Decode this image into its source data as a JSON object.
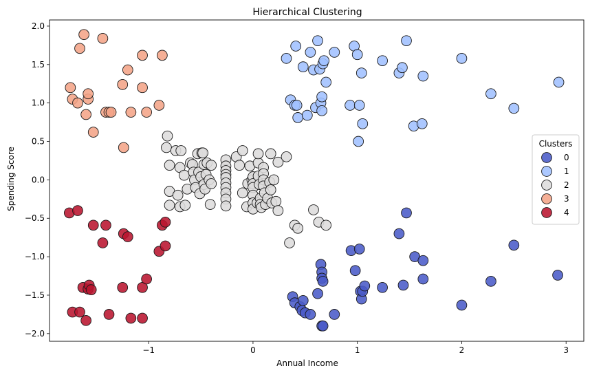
{
  "chart_data": {
    "type": "scatter",
    "title": "Hierarchical Clustering",
    "xlabel": "Annual Income",
    "ylabel": "Spending Score",
    "xlim": [
      -1.95,
      3.17
    ],
    "ylim": [
      -2.1,
      2.08
    ],
    "xticks": [
      -1,
      0,
      1,
      2,
      3
    ],
    "xtick_labels": [
      "−1",
      "0",
      "1",
      "2",
      "3"
    ],
    "yticks": [
      -2.0,
      -1.5,
      -1.0,
      -0.5,
      0.0,
      0.5,
      1.0,
      1.5,
      2.0
    ],
    "ytick_labels": [
      "−2.0",
      "−1.5",
      "−1.0",
      "−0.5",
      "0.0",
      "0.5",
      "1.0",
      "1.5",
      "2.0"
    ],
    "grid": false,
    "legend": {
      "title": "Clusters",
      "placement": "right"
    },
    "series": [
      {
        "name": "0",
        "color": "#4a5bc8",
        "points": [
          [
            0.38,
            -1.52
          ],
          [
            0.4,
            -1.6
          ],
          [
            0.45,
            -1.65
          ],
          [
            0.48,
            -1.57
          ],
          [
            0.47,
            -1.7
          ],
          [
            0.5,
            -1.73
          ],
          [
            0.55,
            -1.75
          ],
          [
            0.62,
            -1.48
          ],
          [
            0.65,
            -1.1
          ],
          [
            0.66,
            -1.2
          ],
          [
            0.66,
            -1.28
          ],
          [
            0.67,
            -1.32
          ],
          [
            0.66,
            -1.9
          ],
          [
            0.67,
            -1.9
          ],
          [
            0.78,
            -1.75
          ],
          [
            0.94,
            -0.92
          ],
          [
            0.98,
            -1.18
          ],
          [
            1.02,
            -0.9
          ],
          [
            1.03,
            -1.45
          ],
          [
            1.04,
            -1.55
          ],
          [
            1.05,
            -1.45
          ],
          [
            1.07,
            -1.38
          ],
          [
            1.24,
            -1.4
          ],
          [
            1.4,
            -0.7
          ],
          [
            1.44,
            -1.37
          ],
          [
            1.47,
            -0.43
          ],
          [
            1.55,
            -1.0
          ],
          [
            1.63,
            -1.05
          ],
          [
            1.63,
            -1.29
          ],
          [
            2.0,
            -1.63
          ],
          [
            2.28,
            -1.32
          ],
          [
            2.5,
            -0.85
          ],
          [
            2.92,
            -1.24
          ]
        ]
      },
      {
        "name": "1",
        "color": "#a1c0ff",
        "points": [
          [
            0.32,
            1.58
          ],
          [
            0.36,
            1.04
          ],
          [
            0.4,
            0.97
          ],
          [
            0.41,
            1.74
          ],
          [
            0.42,
            0.97
          ],
          [
            0.43,
            0.81
          ],
          [
            0.48,
            1.47
          ],
          [
            0.52,
            0.84
          ],
          [
            0.55,
            1.66
          ],
          [
            0.58,
            1.43
          ],
          [
            0.6,
            0.94
          ],
          [
            0.62,
            1.81
          ],
          [
            0.64,
            1.44
          ],
          [
            0.65,
            1.0
          ],
          [
            0.66,
            1.08
          ],
          [
            0.66,
            0.9
          ],
          [
            0.67,
            1.51
          ],
          [
            0.68,
            1.55
          ],
          [
            0.7,
            1.27
          ],
          [
            0.78,
            1.66
          ],
          [
            0.93,
            0.97
          ],
          [
            0.97,
            1.74
          ],
          [
            1.0,
            1.63
          ],
          [
            1.01,
            0.5
          ],
          [
            1.02,
            0.97
          ],
          [
            1.04,
            1.39
          ],
          [
            1.05,
            0.73
          ],
          [
            1.24,
            1.55
          ],
          [
            1.4,
            1.39
          ],
          [
            1.43,
            1.46
          ],
          [
            1.47,
            1.81
          ],
          [
            1.54,
            0.7
          ],
          [
            1.62,
            0.73
          ],
          [
            1.63,
            1.35
          ],
          [
            2.0,
            1.58
          ],
          [
            2.28,
            1.12
          ],
          [
            2.5,
            0.93
          ],
          [
            2.93,
            1.27
          ]
        ]
      },
      {
        "name": "2",
        "color": "#dddcdc",
        "points": [
          [
            -0.83,
            0.42
          ],
          [
            -0.82,
            0.57
          ],
          [
            -0.8,
            0.19
          ],
          [
            -0.8,
            -0.15
          ],
          [
            -0.8,
            -0.33
          ],
          [
            -0.74,
            0.38
          ],
          [
            -0.72,
            -0.2
          ],
          [
            -0.7,
            0.16
          ],
          [
            -0.7,
            -0.35
          ],
          [
            -0.69,
            0.38
          ],
          [
            -0.66,
            0.06
          ],
          [
            -0.65,
            -0.33
          ],
          [
            -0.63,
            -0.12
          ],
          [
            -0.6,
            0.22
          ],
          [
            -0.58,
            0.2
          ],
          [
            -0.57,
            0.1
          ],
          [
            -0.56,
            0.0
          ],
          [
            -0.55,
            -0.1
          ],
          [
            -0.53,
            0.34
          ],
          [
            -0.52,
            0.1
          ],
          [
            -0.51,
            -0.18
          ],
          [
            -0.5,
            0.04
          ],
          [
            -0.49,
            0.35
          ],
          [
            -0.48,
            0.35
          ],
          [
            -0.47,
            0.2
          ],
          [
            -0.47,
            -0.06
          ],
          [
            -0.46,
            -0.12
          ],
          [
            -0.45,
            0.07
          ],
          [
            -0.44,
            0.22
          ],
          [
            -0.42,
            0.0
          ],
          [
            -0.41,
            -0.32
          ],
          [
            -0.4,
            0.19
          ],
          [
            -0.4,
            -0.05
          ],
          [
            -0.26,
            0.26
          ],
          [
            -0.26,
            0.18
          ],
          [
            -0.26,
            0.12
          ],
          [
            -0.26,
            0.07
          ],
          [
            -0.26,
            0.03
          ],
          [
            -0.26,
            -0.04
          ],
          [
            -0.26,
            -0.1
          ],
          [
            -0.26,
            -0.17
          ],
          [
            -0.26,
            -0.25
          ],
          [
            -0.26,
            -0.34
          ],
          [
            -0.16,
            0.3
          ],
          [
            -0.13,
            0.19
          ],
          [
            -0.1,
            0.38
          ],
          [
            -0.1,
            -0.17
          ],
          [
            -0.05,
            -0.05
          ],
          [
            -0.06,
            -0.35
          ],
          [
            -0.03,
            0.18
          ],
          [
            -0.01,
            0.0
          ],
          [
            0.0,
            0.04
          ],
          [
            0.0,
            -0.05
          ],
          [
            0.0,
            -0.1
          ],
          [
            0.0,
            -0.2
          ],
          [
            0.0,
            -0.3
          ],
          [
            0.0,
            -0.38
          ],
          [
            0.04,
            -0.3
          ],
          [
            0.05,
            0.22
          ],
          [
            0.05,
            0.34
          ],
          [
            0.05,
            0.05
          ],
          [
            0.06,
            -0.06
          ],
          [
            0.07,
            -0.24
          ],
          [
            0.07,
            -0.32
          ],
          [
            0.08,
            -0.36
          ],
          [
            0.1,
            0.16
          ],
          [
            0.1,
            0.08
          ],
          [
            0.1,
            0.0
          ],
          [
            0.1,
            -0.08
          ],
          [
            0.11,
            -0.17
          ],
          [
            0.12,
            -0.32
          ],
          [
            0.14,
            -0.24
          ],
          [
            0.16,
            -0.03
          ],
          [
            0.17,
            0.34
          ],
          [
            0.17,
            -0.13
          ],
          [
            0.18,
            -0.3
          ],
          [
            0.2,
            0.0
          ],
          [
            0.22,
            -0.28
          ],
          [
            0.24,
            0.23
          ],
          [
            0.24,
            -0.4
          ],
          [
            0.32,
            0.3
          ],
          [
            0.35,
            -0.82
          ],
          [
            0.4,
            -0.59
          ],
          [
            0.43,
            -0.63
          ],
          [
            0.58,
            -0.39
          ],
          [
            0.63,
            -0.55
          ],
          [
            0.7,
            -0.59
          ]
        ]
      },
      {
        "name": "3",
        "color": "#f4a487",
        "points": [
          [
            -1.75,
            1.2
          ],
          [
            -1.73,
            1.05
          ],
          [
            -1.68,
            1.0
          ],
          [
            -1.66,
            1.71
          ],
          [
            -1.62,
            1.89
          ],
          [
            -1.6,
            0.85
          ],
          [
            -1.58,
            1.05
          ],
          [
            -1.58,
            1.12
          ],
          [
            -1.53,
            0.62
          ],
          [
            -1.44,
            1.84
          ],
          [
            -1.41,
            0.88
          ],
          [
            -1.38,
            0.88
          ],
          [
            -1.36,
            0.88
          ],
          [
            -1.25,
            1.24
          ],
          [
            -1.24,
            0.42
          ],
          [
            -1.2,
            1.43
          ],
          [
            -1.17,
            0.88
          ],
          [
            -1.06,
            1.2
          ],
          [
            -1.06,
            1.62
          ],
          [
            -1.02,
            0.88
          ],
          [
            -0.9,
            0.97
          ],
          [
            -0.87,
            1.62
          ]
        ]
      },
      {
        "name": "4",
        "color": "#b9142f",
        "points": [
          [
            -1.76,
            -0.43
          ],
          [
            -1.73,
            -1.72
          ],
          [
            -1.68,
            -0.4
          ],
          [
            -1.66,
            -1.72
          ],
          [
            -1.63,
            -1.4
          ],
          [
            -1.6,
            -1.83
          ],
          [
            -1.58,
            -1.42
          ],
          [
            -1.57,
            -1.37
          ],
          [
            -1.55,
            -1.43
          ],
          [
            -1.53,
            -0.59
          ],
          [
            -1.44,
            -0.82
          ],
          [
            -1.41,
            -0.59
          ],
          [
            -1.38,
            -1.75
          ],
          [
            -1.25,
            -1.4
          ],
          [
            -1.24,
            -0.7
          ],
          [
            -1.2,
            -0.74
          ],
          [
            -1.17,
            -1.8
          ],
          [
            -1.06,
            -1.4
          ],
          [
            -1.06,
            -1.8
          ],
          [
            -1.02,
            -1.29
          ],
          [
            -0.9,
            -0.93
          ],
          [
            -0.87,
            -0.59
          ],
          [
            -0.84,
            -0.55
          ],
          [
            -0.84,
            -0.86
          ]
        ]
      }
    ]
  }
}
